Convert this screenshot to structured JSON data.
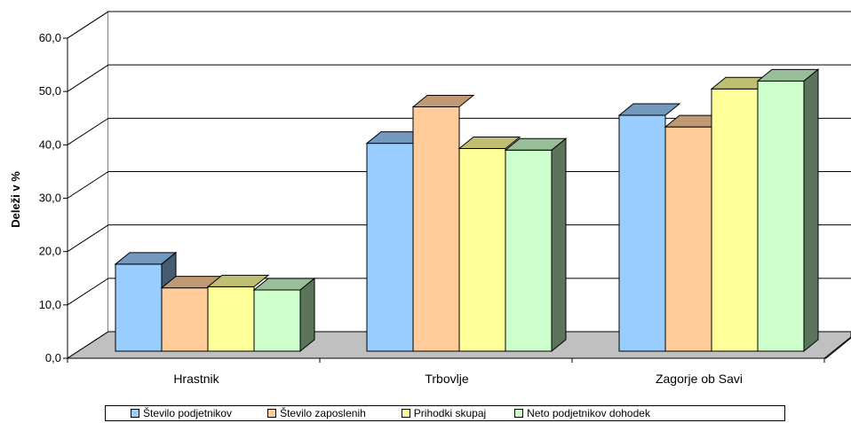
{
  "chart_data": {
    "type": "bar",
    "title": "",
    "xlabel": "",
    "ylabel": "Deleži v %",
    "ylim": [
      0,
      60
    ],
    "yticks": [
      "0,0",
      "10,0",
      "20,0",
      "30,0",
      "40,0",
      "50,0",
      "60,0"
    ],
    "categories": [
      "Hrastnik",
      "Trbovlje",
      "Zagorje ob Savi"
    ],
    "series": [
      {
        "name": "Število podjetnikov",
        "values": [
          16.5,
          39.4,
          44.7
        ],
        "color": "#99ccff"
      },
      {
        "name": "Število zaposlenih",
        "values": [
          12.0,
          46.3,
          42.5
        ],
        "color": "#ffcc99"
      },
      {
        "name": "Prihodki skupaj",
        "values": [
          12.2,
          38.4,
          49.7
        ],
        "color": "#ffff99"
      },
      {
        "name": "Neto podjetnikov dohodek",
        "values": [
          11.6,
          38.1,
          51.2
        ],
        "color": "#ccffcc"
      }
    ],
    "grid": true,
    "legend_position": "bottom",
    "style": "3d-clustered-column"
  }
}
